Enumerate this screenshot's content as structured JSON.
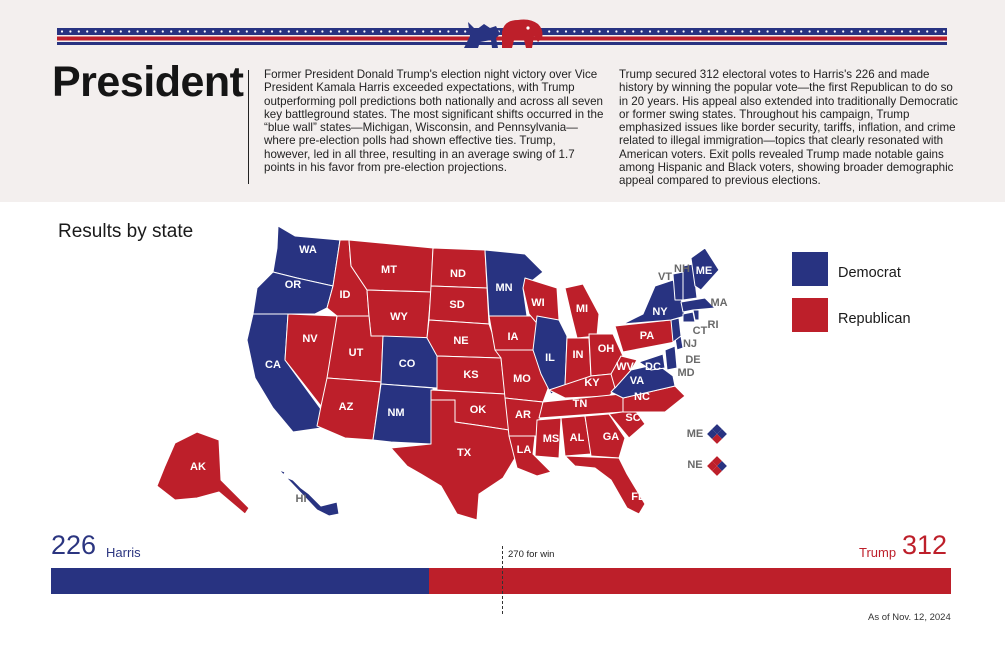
{
  "header": {
    "title": "President",
    "paragraph_left": "Former President Donald Trump's election night victory over Vice President Kamala Harris exceeded expectations, with Trump outperforming poll predictions both nationally and across all seven key battleground states. The most significant shifts occurred in the “blue wall” states—Michigan, Wisconsin, and Pennsylvania—where pre-election polls had shown effective ties. Trump, however, led in all three, resulting in an average swing of 1.7 points in his favor from pre-election projections.",
    "paragraph_right": "Trump secured 312 electoral votes to Harris's 226 and made history by winning the popular vote—the first Republican to do so in 20 years. His appeal also extended into traditionally Democratic or former swing states. Throughout his campaign, Trump emphasized issues like border security, tariffs, inflation, and crime related to illegal immigration—topics that clearly resonated with American voters. Exit polls revealed Trump made notable gains among Hispanic and Black voters, showing broader demographic appeal compared to previous elections."
  },
  "map": {
    "title": "Results by state",
    "legend": [
      {
        "label": "Democrat",
        "color": "#283381"
      },
      {
        "label": "Republican",
        "color": "#bd1f2a"
      }
    ],
    "states": {
      "WA": "D",
      "OR": "D",
      "CA": "D",
      "NV": "R",
      "ID": "R",
      "MT": "R",
      "WY": "R",
      "UT": "R",
      "AZ": "R",
      "CO": "D",
      "NM": "D",
      "ND": "R",
      "SD": "R",
      "NE": "R",
      "KS": "R",
      "OK": "R",
      "TX": "R",
      "MN": "D",
      "IA": "R",
      "MO": "R",
      "AR": "R",
      "LA": "R",
      "WI": "R",
      "IL": "D",
      "MI": "R",
      "IN": "R",
      "OH": "R",
      "KY": "R",
      "TN": "R",
      "MS": "R",
      "AL": "R",
      "GA": "R",
      "FL": "R",
      "SC": "R",
      "NC": "R",
      "VA": "D",
      "WV": "R",
      "PA": "R",
      "NY": "D",
      "VT": "D",
      "NH": "D",
      "ME": "D",
      "MA": "D",
      "RI": "D",
      "CT": "D",
      "NJ": "D",
      "DE": "D",
      "MD": "D",
      "DC": "D",
      "AK": "R",
      "HI": "D"
    },
    "split_states": [
      "ME",
      "NE"
    ]
  },
  "results": {
    "harris_votes": "226",
    "harris_label": "Harris",
    "trump_votes": "312",
    "trump_label": "Trump",
    "win_label": "270 for win",
    "as_of": "As of Nov. 12, 2024",
    "total": 538
  },
  "colors": {
    "dem": "#283381",
    "rep": "#bd1f2a",
    "bg": "#f3efee"
  }
}
